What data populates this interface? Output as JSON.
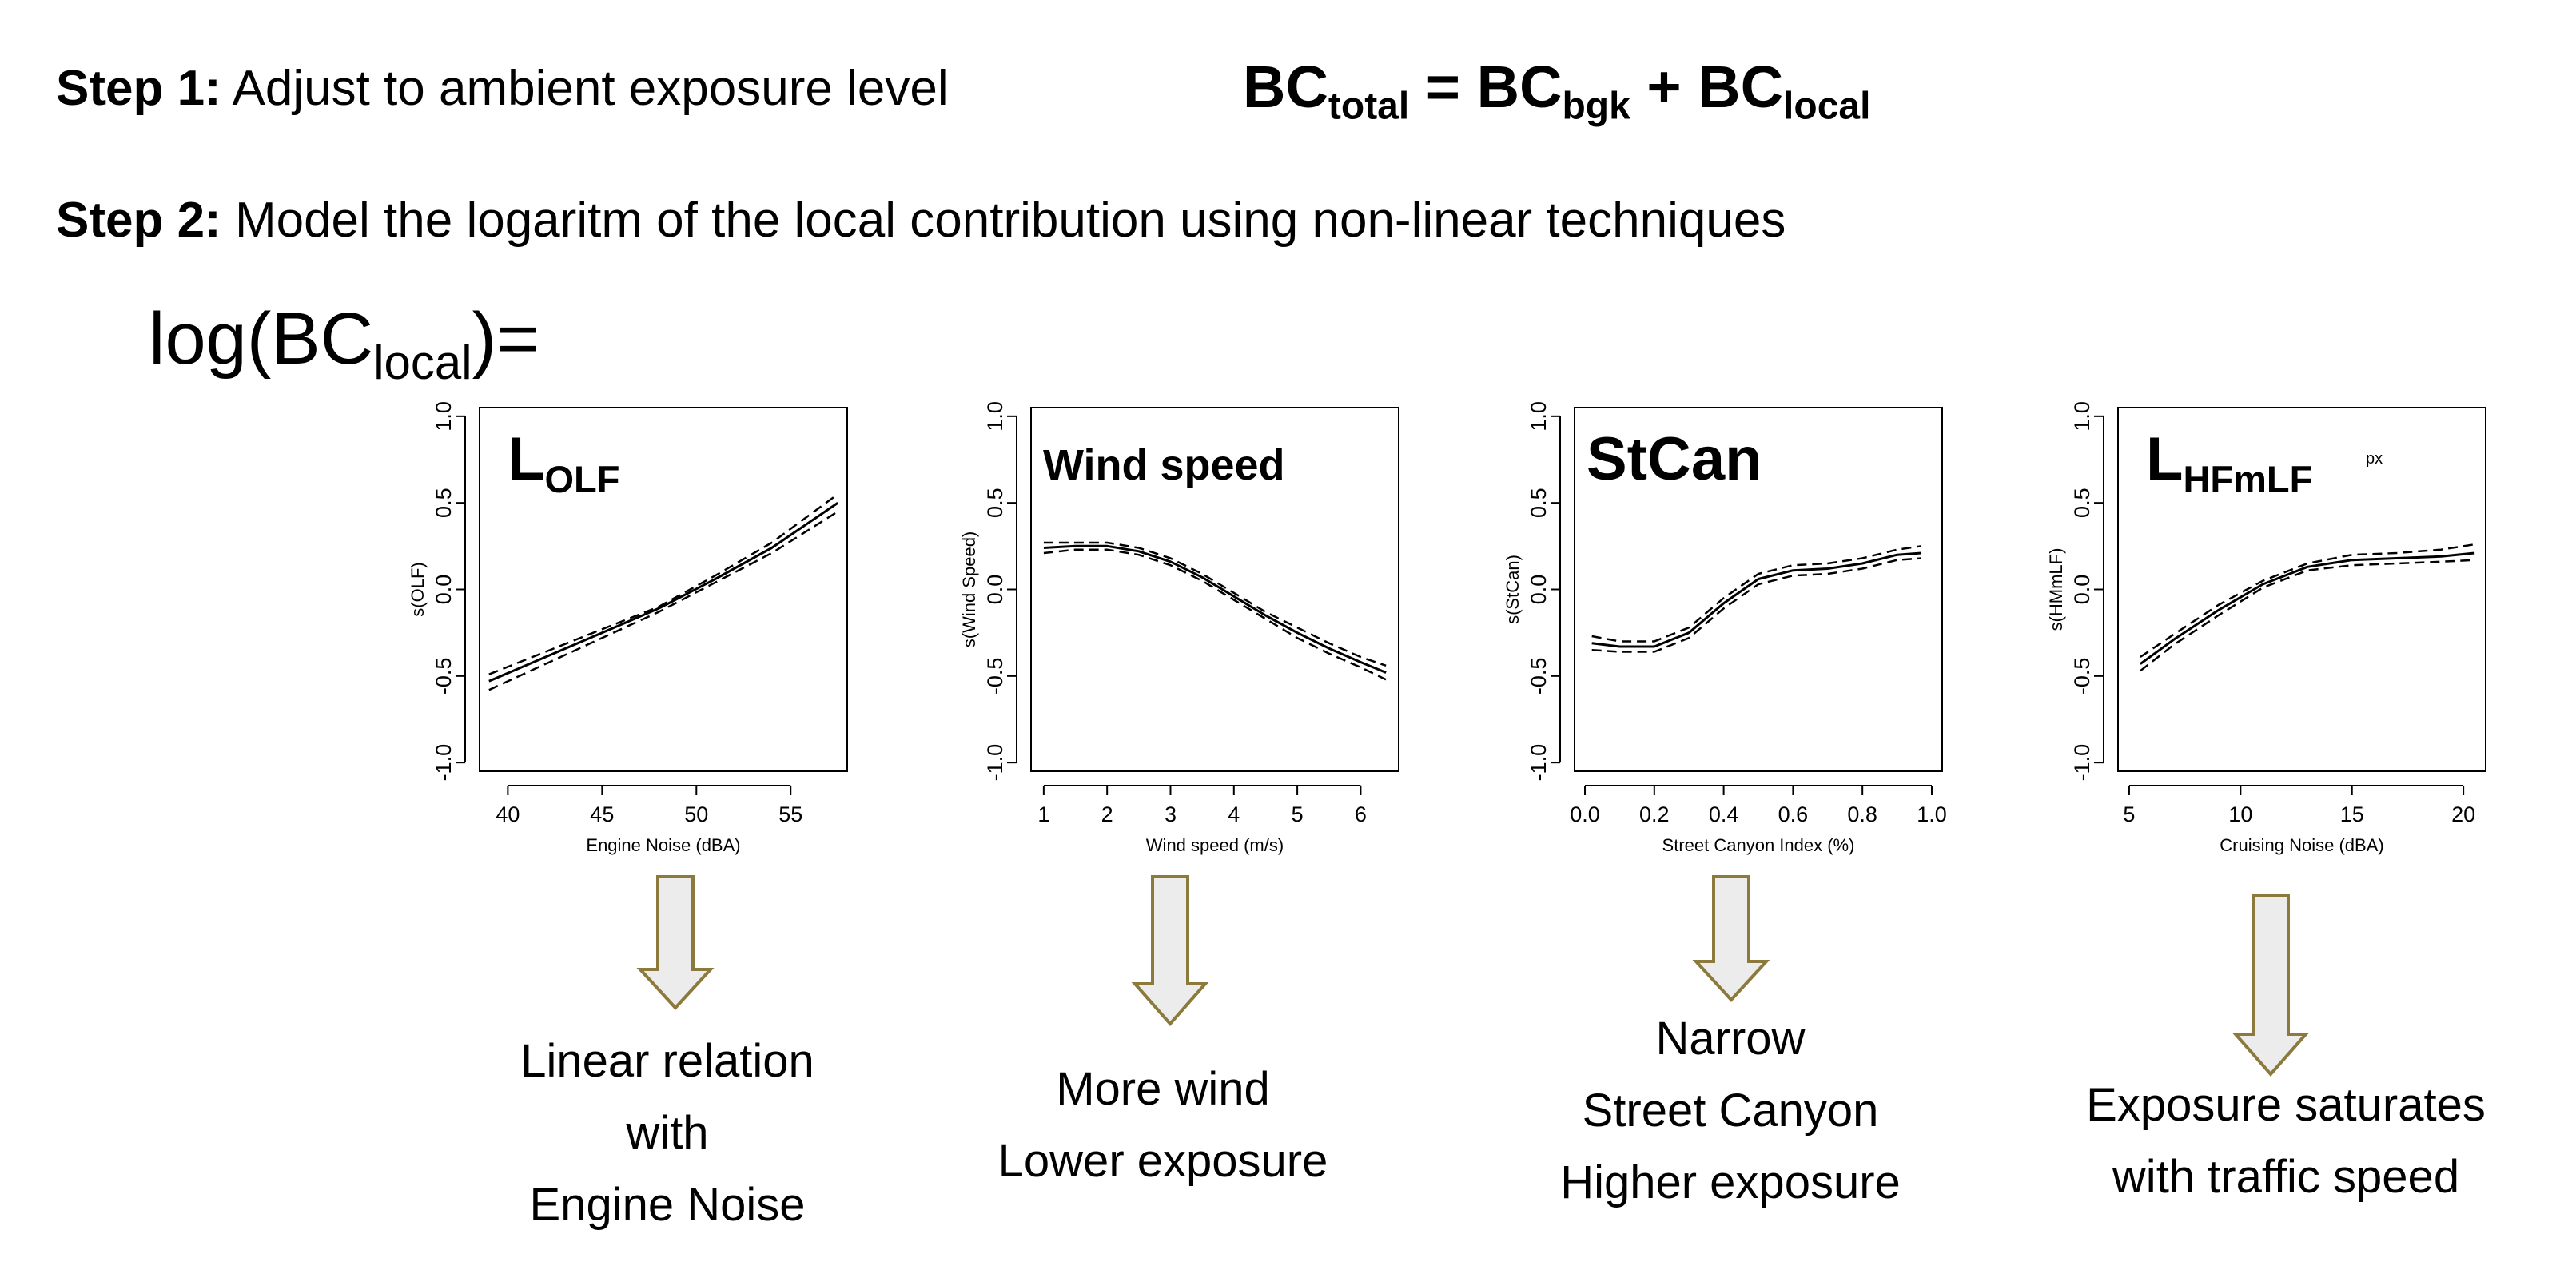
{
  "step1": {
    "label": "Step 1:",
    "text": " Adjust to ambient exposure level"
  },
  "equation": {
    "lhs": "BC",
    "lhs_sub": "total",
    "eq": " = ",
    "t1": "BC",
    "t1_sub": "bgk",
    "plus": " + ",
    "t2": "BC",
    "t2_sub": "local"
  },
  "step2": {
    "label": "Step 2:",
    "text": " Model the logaritm of the local contribution using non-linear techniques"
  },
  "log_expr": {
    "prefix": "log(BC",
    "sub": "local",
    "suffix": ")="
  },
  "captions": [
    [
      "Linear relation",
      "with",
      "Engine Noise"
    ],
    [
      "More wind",
      "Lower exposure"
    ],
    [
      "Narrow",
      "Street Canyon",
      "Higher exposure"
    ],
    [
      "Exposure saturates",
      "with traffic speed"
    ]
  ],
  "colors": {
    "arrow_fill": "#ececec",
    "arrow_stroke": "#8c7a3c"
  },
  "chart_data": [
    {
      "type": "line",
      "title": "L",
      "title_sub": "OLF",
      "title_extra": "",
      "xlabel": "Engine Noise (dBA)",
      "ylabel": "s(OLF)",
      "xlim": [
        38.5,
        58
      ],
      "ylim": [
        -1.05,
        1.05
      ],
      "xticks": [
        40,
        45,
        50,
        55
      ],
      "yticks": [
        -1.0,
        -0.5,
        0.0,
        0.5,
        1.0
      ],
      "x": [
        39,
        42,
        45,
        48,
        51,
        54,
        57.5
      ],
      "series": [
        {
          "name": "estimate",
          "values": [
            -0.53,
            -0.39,
            -0.25,
            -0.11,
            0.06,
            0.24,
            0.5
          ]
        },
        {
          "name": "upper",
          "values": [
            -0.49,
            -0.36,
            -0.23,
            -0.1,
            0.08,
            0.27,
            0.55
          ]
        },
        {
          "name": "lower",
          "values": [
            -0.58,
            -0.43,
            -0.28,
            -0.13,
            0.04,
            0.21,
            0.45
          ]
        }
      ]
    },
    {
      "type": "line",
      "title": "Wind speed",
      "title_sub": "",
      "title_extra": "",
      "xlabel": "Wind speed (m/s)",
      "ylabel": "s(Wind Speed)",
      "xlim": [
        0.8,
        6.6
      ],
      "ylim": [
        -1.05,
        1.05
      ],
      "xticks": [
        1,
        2,
        3,
        4,
        5,
        6
      ],
      "yticks": [
        -1.0,
        -0.5,
        0.0,
        0.5,
        1.0
      ],
      "x": [
        1,
        1.5,
        2,
        2.5,
        3,
        3.5,
        4,
        4.5,
        5,
        5.5,
        6,
        6.4
      ],
      "series": [
        {
          "name": "estimate",
          "values": [
            0.24,
            0.25,
            0.25,
            0.22,
            0.16,
            0.07,
            -0.04,
            -0.15,
            -0.25,
            -0.34,
            -0.42,
            -0.48
          ]
        },
        {
          "name": "upper",
          "values": [
            0.27,
            0.27,
            0.27,
            0.24,
            0.18,
            0.09,
            -0.02,
            -0.13,
            -0.22,
            -0.31,
            -0.39,
            -0.44
          ]
        },
        {
          "name": "lower",
          "values": [
            0.21,
            0.23,
            0.23,
            0.2,
            0.14,
            0.05,
            -0.06,
            -0.17,
            -0.28,
            -0.37,
            -0.45,
            -0.52
          ]
        }
      ]
    },
    {
      "type": "line",
      "title": "StCan",
      "title_sub": "",
      "title_extra": "",
      "xlabel": "Street Canyon Index (%)",
      "ylabel": "s(StCan)",
      "xlim": [
        -0.03,
        1.03
      ],
      "ylim": [
        -1.05,
        1.05
      ],
      "xticks": [
        0.0,
        0.2,
        0.4,
        0.6,
        0.8,
        1.0
      ],
      "yticks": [
        -1.0,
        -0.5,
        0.0,
        0.5,
        1.0
      ],
      "x": [
        0.02,
        0.1,
        0.2,
        0.3,
        0.4,
        0.5,
        0.6,
        0.7,
        0.8,
        0.9,
        0.97
      ],
      "series": [
        {
          "name": "estimate",
          "values": [
            -0.31,
            -0.33,
            -0.33,
            -0.25,
            -0.08,
            0.06,
            0.11,
            0.12,
            0.15,
            0.2,
            0.21
          ]
        },
        {
          "name": "upper",
          "values": [
            -0.27,
            -0.3,
            -0.3,
            -0.22,
            -0.05,
            0.09,
            0.14,
            0.15,
            0.18,
            0.23,
            0.25
          ]
        },
        {
          "name": "lower",
          "values": [
            -0.35,
            -0.36,
            -0.36,
            -0.28,
            -0.11,
            0.03,
            0.08,
            0.09,
            0.12,
            0.17,
            0.18
          ]
        }
      ]
    },
    {
      "type": "line",
      "title": "L",
      "title_sub": "HFmLF",
      "title_extra": "px",
      "xlabel": "Cruising Noise (dBA)",
      "ylabel": "s(HMmLF)",
      "xlim": [
        4.5,
        21
      ],
      "ylim": [
        -1.05,
        1.05
      ],
      "xticks": [
        5,
        10,
        15,
        20
      ],
      "yticks": [
        -1.0,
        -0.5,
        0.0,
        0.5,
        1.0
      ],
      "x": [
        5.5,
        7,
        9,
        11,
        13,
        15,
        17,
        19,
        20.5
      ],
      "series": [
        {
          "name": "estimate",
          "values": [
            -0.43,
            -0.29,
            -0.12,
            0.03,
            0.13,
            0.17,
            0.18,
            0.19,
            0.21
          ]
        },
        {
          "name": "upper",
          "values": [
            -0.39,
            -0.26,
            -0.09,
            0.05,
            0.15,
            0.2,
            0.21,
            0.23,
            0.26
          ]
        },
        {
          "name": "lower",
          "values": [
            -0.47,
            -0.32,
            -0.15,
            0.01,
            0.11,
            0.14,
            0.15,
            0.16,
            0.17
          ]
        }
      ]
    }
  ]
}
